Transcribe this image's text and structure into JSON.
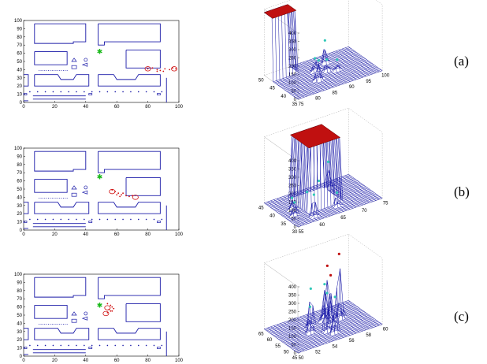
{
  "colors": {
    "map_lines": "#1a1aa8",
    "particles": "#d01010",
    "robot": "#18b818",
    "surface_high": "#c01010",
    "surface_peak": "#30c8b8",
    "surface_mesh": "#1a1aa8"
  },
  "panels": [
    {
      "label": "(a)",
      "map": {
        "xticks": [
          "0",
          "20",
          "40",
          "60",
          "80",
          "100"
        ],
        "yticks": [
          "0",
          "10",
          "20",
          "30",
          "40",
          "50",
          "60",
          "70",
          "80",
          "90",
          "100"
        ],
        "robot": [
          49,
          62
        ],
        "particles": [
          [
            80,
            41
          ],
          [
            83,
            42
          ],
          [
            86,
            40
          ],
          [
            88,
            39
          ],
          [
            91,
            41
          ],
          [
            94,
            40
          ],
          [
            96,
            42
          ],
          [
            98,
            41
          ],
          [
            86,
            38
          ],
          [
            90,
            38
          ]
        ],
        "circles": [
          [
            80,
            41
          ],
          [
            97,
            41
          ]
        ]
      },
      "surface": {
        "zticks": [
          "0",
          "50",
          "100",
          "150",
          "200",
          "250",
          "300",
          "350",
          "400"
        ],
        "left_axis_ticks": [
          "50",
          "45",
          "40",
          "35"
        ],
        "right_axis_ticks": [
          "75",
          "80",
          "85",
          "90",
          "95",
          "100"
        ],
        "plateau_height": 380,
        "peaks": [
          {
            "u": 0.34,
            "v": 0.38,
            "h": 120
          },
          {
            "u": 0.52,
            "v": 0.55,
            "h": 70
          },
          {
            "u": 0.75,
            "v": 0.62,
            "h": 140
          },
          {
            "u": 0.62,
            "v": 0.45,
            "h": 80
          },
          {
            "u": 0.44,
            "v": 0.64,
            "h": 65
          }
        ]
      }
    },
    {
      "label": "(b)",
      "map": {
        "xticks": [
          "0",
          "20",
          "40",
          "60",
          "80",
          "100"
        ],
        "yticks": [
          "0",
          "10",
          "20",
          "30",
          "40",
          "50",
          "60",
          "70",
          "80",
          "90",
          "100"
        ],
        "robot": [
          49,
          65
        ],
        "particles": [
          [
            57,
            49
          ],
          [
            59,
            47
          ],
          [
            61,
            45
          ],
          [
            63,
            43
          ],
          [
            62,
            41
          ],
          [
            66,
            42
          ],
          [
            68,
            41
          ],
          [
            70,
            42
          ],
          [
            60,
            43
          ],
          [
            64,
            45
          ]
        ],
        "circles": [
          [
            57,
            47
          ],
          [
            72,
            40
          ]
        ]
      },
      "surface": {
        "zticks": [
          "0",
          "50",
          "100",
          "150",
          "200",
          "250",
          "300",
          "350",
          "400"
        ],
        "left_axis_ticks": [
          "45",
          "40",
          "35",
          "30"
        ],
        "right_axis_ticks": [
          "55",
          "60",
          "65",
          "70",
          "75"
        ],
        "plateau_height": 390,
        "peaks": [
          {
            "u": 0.15,
            "v": 0.25,
            "h": 130
          },
          {
            "u": 0.22,
            "v": 0.55,
            "h": 80
          },
          {
            "u": 0.48,
            "v": 0.3,
            "h": 90
          },
          {
            "u": 0.68,
            "v": 0.52,
            "h": 90
          },
          {
            "u": 0.8,
            "v": 0.68,
            "h": 160
          },
          {
            "u": 0.55,
            "v": 0.15,
            "h": 70
          },
          {
            "u": 0.35,
            "v": 0.1,
            "h": 80
          }
        ]
      }
    },
    {
      "label": "(c)",
      "map": {
        "xticks": [
          "0",
          "20",
          "40",
          "60",
          "80",
          "100"
        ],
        "yticks": [
          "0",
          "10",
          "20",
          "30",
          "40",
          "50",
          "60",
          "70",
          "80",
          "90",
          "100"
        ],
        "robot": [
          49,
          62
        ],
        "particles": [
          [
            54,
            64
          ],
          [
            56,
            62
          ],
          [
            57,
            60
          ],
          [
            55,
            57
          ],
          [
            57,
            55
          ],
          [
            54,
            53
          ],
          [
            58,
            58
          ],
          [
            56,
            55
          ]
        ],
        "circles": [
          [
            54,
            59
          ],
          [
            53,
            52
          ]
        ]
      },
      "surface": {
        "zticks": [
          "0",
          "50",
          "100",
          "150",
          "200",
          "250",
          "300",
          "350",
          "400"
        ],
        "left_axis_ticks": [
          "65",
          "60",
          "55",
          "50",
          "45"
        ],
        "right_axis_ticks": [
          "50",
          "52",
          "54",
          "56",
          "58",
          "60"
        ],
        "plateau_height": 0,
        "peaks": [
          {
            "u": 0.2,
            "v": 0.52,
            "h": 220
          },
          {
            "u": 0.34,
            "v": 0.48,
            "h": 230
          },
          {
            "u": 0.48,
            "v": 0.58,
            "h": 300
          },
          {
            "u": 0.58,
            "v": 0.72,
            "h": 390
          },
          {
            "u": 0.66,
            "v": 0.58,
            "h": 220
          },
          {
            "u": 0.62,
            "v": 0.4,
            "h": 230
          },
          {
            "u": 0.44,
            "v": 0.32,
            "h": 160
          },
          {
            "u": 0.78,
            "v": 0.66,
            "h": 300
          }
        ]
      }
    }
  ]
}
